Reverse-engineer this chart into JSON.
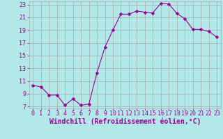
{
  "x": [
    0,
    1,
    2,
    3,
    4,
    5,
    6,
    7,
    8,
    9,
    10,
    11,
    12,
    13,
    14,
    15,
    16,
    17,
    18,
    19,
    20,
    21,
    22,
    23
  ],
  "y": [
    10.3,
    10.1,
    8.8,
    8.8,
    7.2,
    8.2,
    7.2,
    7.4,
    12.3,
    16.3,
    19.0,
    21.5,
    21.5,
    22.0,
    21.8,
    21.7,
    23.2,
    23.1,
    21.6,
    20.8,
    19.1,
    19.1,
    18.8,
    17.9
  ],
  "line_color": "#990099",
  "marker": "D",
  "marker_size": 2.5,
  "bg_color": "#b2e8e8",
  "grid_color": "#aaaaaa",
  "ylim_min": 7,
  "ylim_max": 23,
  "yticks": [
    7,
    9,
    11,
    13,
    15,
    17,
    19,
    21,
    23
  ],
  "xticks": [
    0,
    1,
    2,
    3,
    4,
    5,
    6,
    7,
    8,
    9,
    10,
    11,
    12,
    13,
    14,
    15,
    16,
    17,
    18,
    19,
    20,
    21,
    22,
    23
  ],
  "xlabel": "Windchill (Refroidissement éolien,°C)",
  "xlabel_color": "#990099",
  "tick_color": "#990099",
  "tick_fontsize": 6,
  "xlabel_fontsize": 7
}
